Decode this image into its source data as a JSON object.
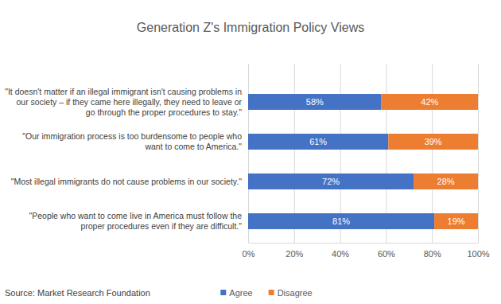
{
  "chart_data": {
    "type": "bar",
    "title": "Generation Z's Immigration Policy Views",
    "orientation": "horizontal",
    "stacked": true,
    "data_labels": true,
    "grid": true,
    "legend": "bottom",
    "categories": [
      "\"It doesn't matter if an illegal immigrant isn't causing problems in our society – if they came here illegally, they need to leave or go through the proper procedures to stay.\"",
      "\"Our immigration process is too burdensome to people who want to come to America.\"",
      "\"Most illegal immigrants do not cause problems in our society.\"",
      "\"People who want to come live in America must follow the proper procedures even if they are difficult.\""
    ],
    "series": [
      {
        "name": "Agree",
        "color": "#4472c4",
        "values": [
          58,
          61,
          72,
          81
        ],
        "value_labels": [
          "58%",
          "61%",
          "72%",
          "81%"
        ]
      },
      {
        "name": "Disagree",
        "color": "#ed7d31",
        "values": [
          42,
          39,
          28,
          19
        ],
        "value_labels": [
          "42%",
          "39%",
          "28%",
          "19%"
        ]
      }
    ],
    "xlim": [
      0,
      100
    ],
    "xticks": [
      {
        "value": 0,
        "label": "0%"
      },
      {
        "value": 20,
        "label": "20%"
      },
      {
        "value": 40,
        "label": "40%"
      },
      {
        "value": 60,
        "label": "60%"
      },
      {
        "value": 80,
        "label": "80%"
      },
      {
        "value": 100,
        "label": "100%"
      }
    ],
    "annotations": [
      "Source: Market Research Foundation"
    ]
  }
}
